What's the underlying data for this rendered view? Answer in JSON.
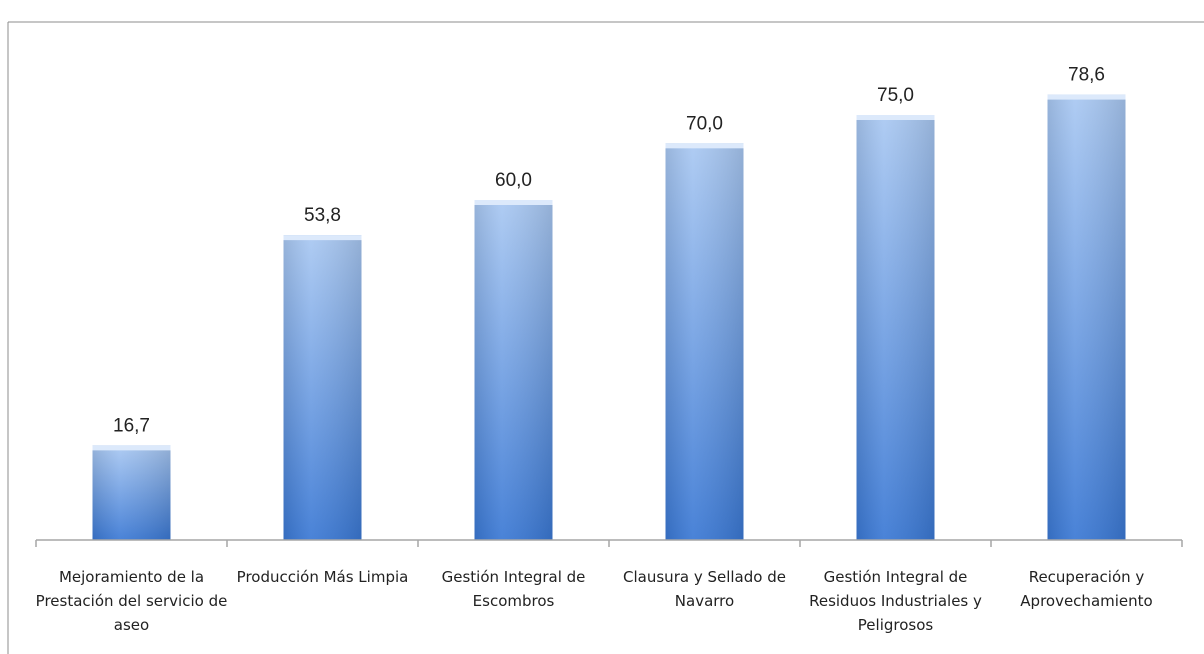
{
  "chart_data": {
    "type": "bar",
    "categories": [
      [
        "Mejoramiento de la",
        "Prestación del servicio de",
        "aseo"
      ],
      [
        "Producción Más Limpia"
      ],
      [
        "Gestión Integral de",
        "Escombros"
      ],
      [
        "Clausura y Sellado de",
        "Navarro"
      ],
      [
        "Gestión Integral de",
        "Residuos Industriales y",
        "Peligrosos"
      ],
      [
        "Recuperación y",
        "Aprovechamiento"
      ]
    ],
    "values": [
      16.7,
      53.8,
      60.0,
      70.0,
      75.0,
      78.6
    ],
    "value_labels": [
      "16,7",
      "53,8",
      "60,0",
      "70,0",
      "75,0",
      "78,6"
    ],
    "ylim": [
      0,
      90
    ],
    "grid": false,
    "legend": "none",
    "title": "",
    "xlabel": "",
    "ylabel": "",
    "colors": {
      "bar_top": "#a9c8f2",
      "bar_bottom": "#3a78d4",
      "bar_cap": "#dce9fb",
      "axis": "#a6a6a6",
      "border": "#8c8c8c"
    }
  }
}
